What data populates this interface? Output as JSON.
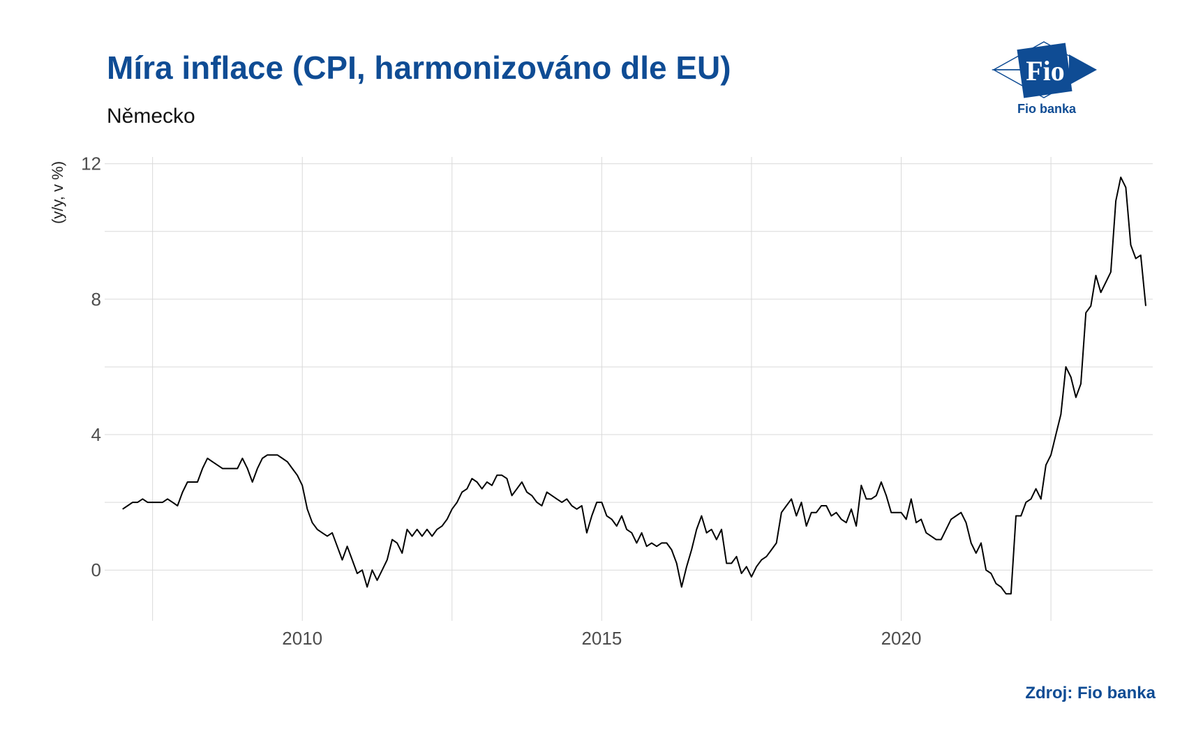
{
  "header": {
    "title": "Míra inflace (CPI, harmonizováno dle EU)",
    "subtitle": "Německo"
  },
  "logo": {
    "text": "Fio banka",
    "mark": "Fio",
    "color": "#0f4c94"
  },
  "source": "Zdroj: Fio banka",
  "chart_data": {
    "type": "line",
    "title": "Míra inflace (CPI, harmonizováno dle EU)",
    "subtitle": "Německo",
    "xlabel": "",
    "ylabel": "(y/y, v %)",
    "xlim": [
      2006.7,
      2024.2
    ],
    "ylim": [
      -1.5,
      12.2
    ],
    "xticks": [
      2010,
      2015,
      2020
    ],
    "yticks": [
      0,
      4,
      8,
      12
    ],
    "grid": true,
    "line_color": "#000000",
    "series": [
      {
        "start": "2007-01",
        "frequency": "monthly",
        "values": [
          1.8,
          1.9,
          2.0,
          2.0,
          2.1,
          2.0,
          2.0,
          2.0,
          2.0,
          2.1,
          2.0,
          1.9,
          2.3,
          2.6,
          2.6,
          2.6,
          3.0,
          3.3,
          3.2,
          3.1,
          3.0,
          3.0,
          3.0,
          3.0,
          3.3,
          3.0,
          2.6,
          3.0,
          3.3,
          3.4,
          3.4,
          3.4,
          3.3,
          3.2,
          3.0,
          2.8,
          2.5,
          1.8,
          1.4,
          1.2,
          1.1,
          1.0,
          1.1,
          0.7,
          0.3,
          0.7,
          0.3,
          -0.1,
          0.0,
          -0.5,
          0.0,
          -0.3,
          0.0,
          0.3,
          0.9,
          0.8,
          0.5,
          1.2,
          1.0,
          1.2,
          1.0,
          1.2,
          1.0,
          1.2,
          1.3,
          1.5,
          1.8,
          2.0,
          2.3,
          2.4,
          2.7,
          2.6,
          2.4,
          2.6,
          2.5,
          2.8,
          2.8,
          2.7,
          2.2,
          2.4,
          2.6,
          2.3,
          2.2,
          2.0,
          1.9,
          2.3,
          2.2,
          2.1,
          2.0,
          2.1,
          1.9,
          1.8,
          1.9,
          1.1,
          1.6,
          2.0,
          2.0,
          1.6,
          1.5,
          1.3,
          1.6,
          1.2,
          1.1,
          0.8,
          1.1,
          0.7,
          0.8,
          0.7,
          0.8,
          0.8,
          0.6,
          0.2,
          -0.5,
          0.1,
          0.6,
          1.2,
          1.6,
          1.1,
          1.2,
          0.9,
          1.2,
          0.2,
          0.2,
          0.4,
          -0.1,
          0.1,
          -0.2,
          0.1,
          0.3,
          0.4,
          0.6,
          0.8,
          1.7,
          1.9,
          2.1,
          1.6,
          2.0,
          1.3,
          1.7,
          1.7,
          1.9,
          1.9,
          1.6,
          1.7,
          1.5,
          1.4,
          1.8,
          1.3,
          2.5,
          2.1,
          2.1,
          2.2,
          2.6,
          2.2,
          1.7,
          1.7,
          1.7,
          1.5,
          2.1,
          1.4,
          1.5,
          1.1,
          1.0,
          0.9,
          0.9,
          1.2,
          1.5,
          1.6,
          1.7,
          1.4,
          0.8,
          0.5,
          0.8,
          0.0,
          -0.1,
          -0.4,
          -0.5,
          -0.7,
          -0.7,
          1.6,
          1.6,
          2.0,
          2.1,
          2.4,
          2.1,
          3.1,
          3.4,
          4.0,
          4.6,
          6.0,
          5.7,
          5.1,
          5.5,
          7.6,
          7.8,
          8.7,
          8.2,
          8.5,
          8.8,
          10.9,
          11.6,
          11.3,
          9.6,
          9.2,
          9.3,
          7.8
        ]
      }
    ]
  }
}
